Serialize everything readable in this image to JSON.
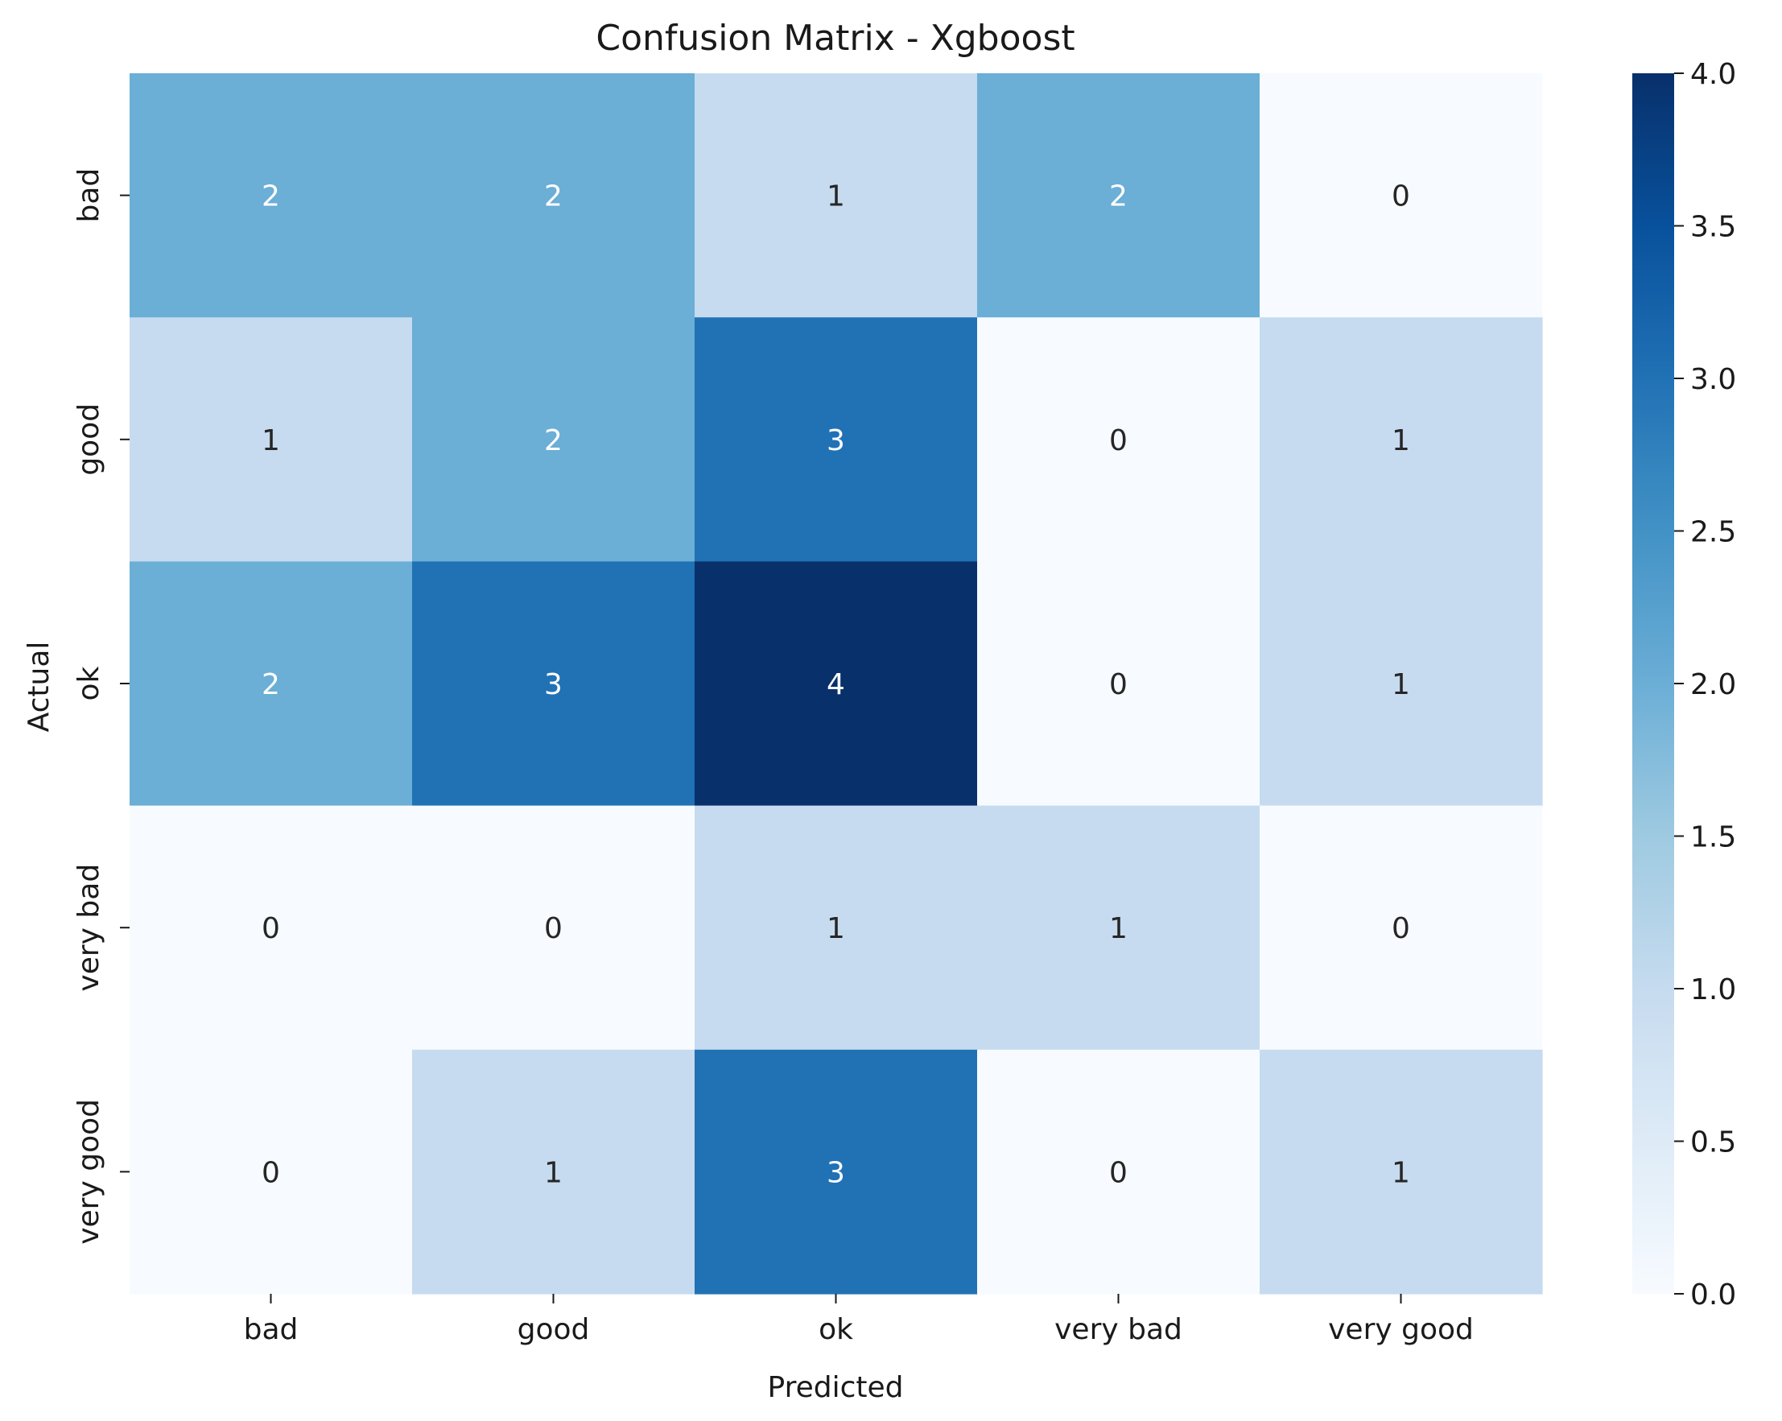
{
  "chart_data": {
    "type": "heatmap",
    "title": "Confusion Matrix - Xgboost",
    "xlabel": "Predicted",
    "ylabel": "Actual",
    "x_categories": [
      "bad",
      "good",
      "ok",
      "very bad",
      "very good"
    ],
    "y_categories": [
      "bad",
      "good",
      "ok",
      "very bad",
      "very good"
    ],
    "values": [
      [
        2,
        2,
        1,
        2,
        0
      ],
      [
        1,
        2,
        3,
        0,
        1
      ],
      [
        2,
        3,
        4,
        0,
        1
      ],
      [
        0,
        0,
        1,
        1,
        0
      ],
      [
        0,
        1,
        3,
        0,
        1
      ]
    ],
    "colormap": "Blues",
    "colorbar": {
      "range": [
        0.0,
        4.0
      ],
      "ticks": [
        "0.0",
        "0.5",
        "1.0",
        "1.5",
        "2.0",
        "2.5",
        "3.0",
        "3.5",
        "4.0"
      ]
    },
    "annotation_colors": {
      "dark": "#262626",
      "light": "#ffffff"
    }
  }
}
